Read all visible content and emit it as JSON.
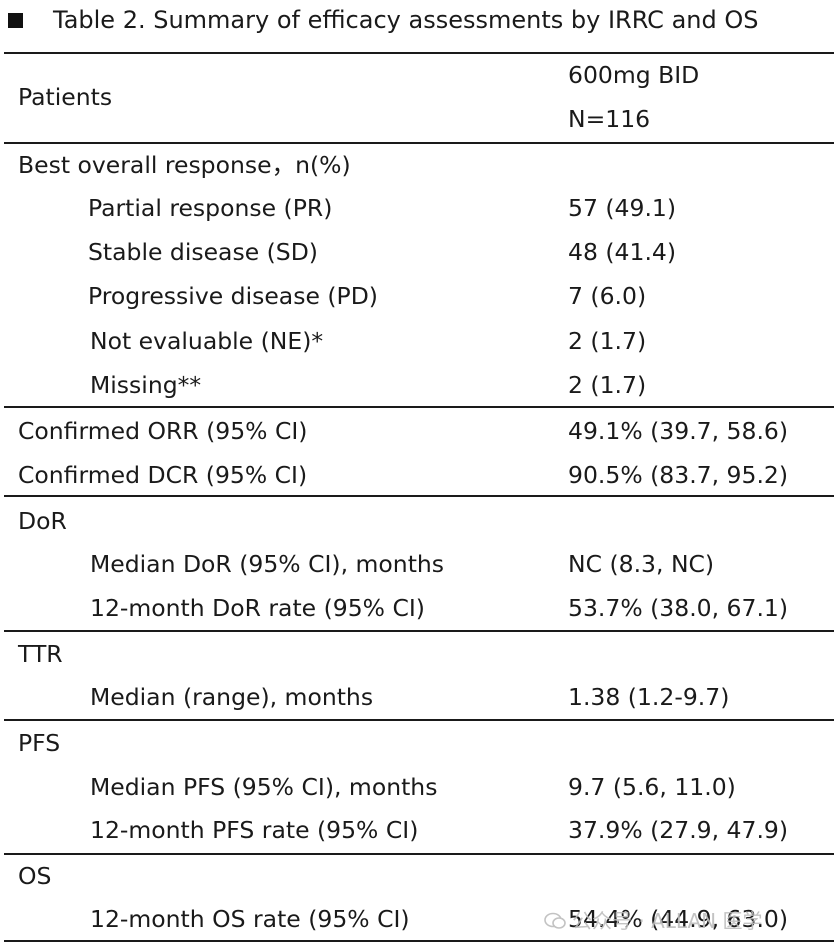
{
  "title": "Table 2. Summary of efficacy assessments by IRRC and OS",
  "header": {
    "left": "Patients",
    "dose": "600mg BID",
    "n": "N=116"
  },
  "sections": {
    "bor": {
      "label": "Best overall response，n(%)",
      "rows": [
        {
          "label": "Partial response (PR)",
          "value": "57 (49.1)"
        },
        {
          "label": "Stable disease (SD)",
          "value": "48 (41.4)"
        },
        {
          "label": "Progressive disease (PD)",
          "value": "7 (6.0)"
        },
        {
          "label": "Not evaluable (NE)*",
          "value": "2 (1.7)"
        },
        {
          "label": "Missing**",
          "value": "2 (1.7)"
        }
      ]
    },
    "confirmed": {
      "rows": [
        {
          "label": "Confirmed ORR (95% CI)",
          "value": "49.1% (39.7, 58.6)"
        },
        {
          "label": "Confirmed DCR (95% CI)",
          "value": "90.5% (83.7, 95.2)"
        }
      ]
    },
    "dor": {
      "label": "DoR",
      "rows": [
        {
          "label": "Median DoR (95% CI), months",
          "value": "NC (8.3, NC)"
        },
        {
          "label": "12-month DoR rate (95% CI)",
          "value": "53.7% (38.0, 67.1)"
        }
      ]
    },
    "ttr": {
      "label": "TTR",
      "rows": [
        {
          "label": "Median (range), months",
          "value": "1.38 (1.2-9.7)"
        }
      ]
    },
    "pfs": {
      "label": "PFS",
      "rows": [
        {
          "label": "Median PFS (95% CI), months",
          "value": "9.7 (5.6, 11.0)"
        },
        {
          "label": "12-month PFS rate (95% CI)",
          "value": "37.9% (27.9, 47.9)"
        }
      ]
    },
    "os": {
      "label": "OS",
      "rows": [
        {
          "label": "12-month OS rate (95% CI)",
          "value": "54.4% (44.9, 63.0)"
        }
      ]
    }
  },
  "watermark": "公众号 · ALLAN 医学",
  "colors": {
    "text": "#1a1a1a",
    "rule": "#1a1a1a",
    "watermark": "#bdbdbd"
  }
}
